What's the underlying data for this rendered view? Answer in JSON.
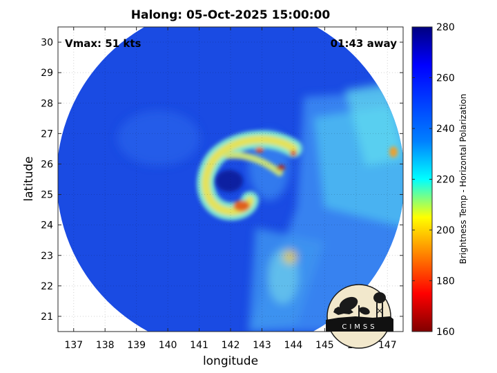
{
  "header": {
    "title": "Halong: 05-Oct-2025 15:00:00"
  },
  "annotations": {
    "vmax": "Vmax: 51 kts",
    "time_away": "01:43 away"
  },
  "logo": {
    "text": "CIMSS"
  },
  "chart_data": {
    "type": "heatmap",
    "title": "Halong: 05-Oct-2025 15:00:00",
    "xlabel": "longitude",
    "ylabel": "latitude",
    "xlim": [
      136.5,
      147.5
    ],
    "ylim": [
      20.5,
      30.5
    ],
    "x_ticks": [
      137,
      138,
      139,
      140,
      141,
      142,
      143,
      144,
      145,
      146,
      147
    ],
    "y_ticks": [
      21,
      22,
      23,
      24,
      25,
      26,
      27,
      28,
      29,
      30
    ],
    "grid": true,
    "colorbar": {
      "label": "Brightness Temp - Horizontal Polarization",
      "range": [
        160,
        280
      ],
      "ticks": [
        160,
        180,
        200,
        220,
        240,
        260,
        280
      ],
      "colormap": [
        "#800000",
        "#ff0000",
        "#ffff00",
        "#00ffff",
        "#0080ff",
        "#0000ff",
        "#00007f"
      ]
    },
    "swath": {
      "center_lon": 142.0,
      "center_lat": 25.5,
      "background_temp": 260
    },
    "storm": {
      "center_lon": 141.8,
      "center_lat": 25.1,
      "eye_temp": 270
    },
    "features": [
      {
        "name": "eyewall-band",
        "min_temp": 175
      },
      {
        "name": "east-band",
        "min_temp": 235
      },
      {
        "name": "south-outer-band",
        "min_temp": 225
      }
    ]
  }
}
